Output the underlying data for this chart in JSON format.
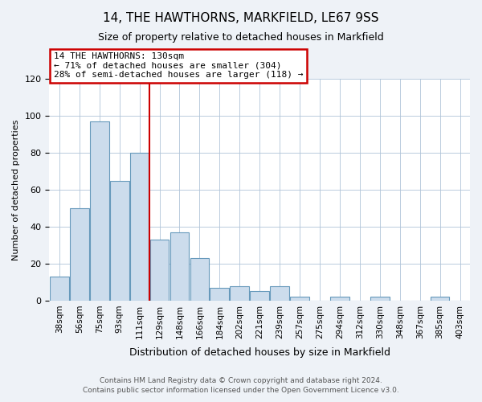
{
  "title": "14, THE HAWTHORNS, MARKFIELD, LE67 9SS",
  "subtitle": "Size of property relative to detached houses in Markfield",
  "xlabel": "Distribution of detached houses by size in Markfield",
  "ylabel": "Number of detached properties",
  "bar_labels": [
    "38sqm",
    "56sqm",
    "75sqm",
    "93sqm",
    "111sqm",
    "129sqm",
    "148sqm",
    "166sqm",
    "184sqm",
    "202sqm",
    "221sqm",
    "239sqm",
    "257sqm",
    "275sqm",
    "294sqm",
    "312sqm",
    "330sqm",
    "348sqm",
    "367sqm",
    "385sqm",
    "403sqm"
  ],
  "bar_values": [
    13,
    50,
    97,
    65,
    80,
    33,
    37,
    23,
    7,
    8,
    5,
    8,
    2,
    0,
    2,
    0,
    2,
    0,
    0,
    2,
    0
  ],
  "bar_color": "#ccdcec",
  "bar_edge_color": "#6699bb",
  "highlight_bar_index": 5,
  "vline_color": "#cc0000",
  "ylim": [
    0,
    120
  ],
  "yticks": [
    0,
    20,
    40,
    60,
    80,
    100,
    120
  ],
  "annotation_title": "14 THE HAWTHORNS: 130sqm",
  "annotation_line1": "← 71% of detached houses are smaller (304)",
  "annotation_line2": "28% of semi-detached houses are larger (118) →",
  "annotation_box_color": "#ffffff",
  "annotation_box_edge_color": "#cc0000",
  "footer_line1": "Contains HM Land Registry data © Crown copyright and database right 2024.",
  "footer_line2": "Contains public sector information licensed under the Open Government Licence v3.0.",
  "background_color": "#eef2f7",
  "plot_background_color": "#ffffff",
  "grid_color": "#b0c4d8"
}
